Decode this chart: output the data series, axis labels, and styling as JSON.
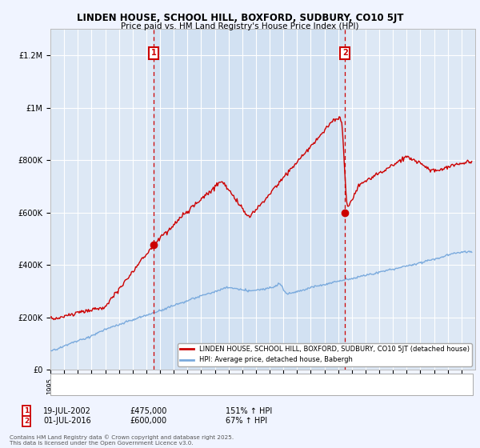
{
  "title": "LINDEN HOUSE, SCHOOL HILL, BOXFORD, SUDBURY, CO10 5JT",
  "subtitle": "Price paid vs. HM Land Registry's House Price Index (HPI)",
  "house_color": "#cc0000",
  "hpi_color": "#7aaadd",
  "dashed_line_color": "#cc0000",
  "background_color": "#f0f4ff",
  "plot_bg_color": "#dde8f5",
  "shaded_bg_color": "#ccddf0",
  "ylim": [
    0,
    1300000
  ],
  "yticks": [
    0,
    200000,
    400000,
    600000,
    800000,
    1000000,
    1200000
  ],
  "ytick_labels": [
    "£0",
    "£200K",
    "£400K",
    "£600K",
    "£800K",
    "£1M",
    "£1.2M"
  ],
  "purchase1_x": 2002.54,
  "purchase1_y": 475000,
  "purchase1_label": "1",
  "purchase2_x": 2016.5,
  "purchase2_y": 600000,
  "purchase2_label": "2",
  "legend_entries": [
    "LINDEN HOUSE, SCHOOL HILL, BOXFORD, SUDBURY, CO10 5JT (detached house)",
    "HPI: Average price, detached house, Babergh"
  ],
  "annotation1_date": "19-JUL-2002",
  "annotation1_price": "£475,000",
  "annotation1_hpi": "151% ↑ HPI",
  "annotation2_date": "01-JUL-2016",
  "annotation2_price": "£600,000",
  "annotation2_hpi": "67% ↑ HPI",
  "footer": "Contains HM Land Registry data © Crown copyright and database right 2025.\nThis data is licensed under the Open Government Licence v3.0.",
  "xmin": 1995,
  "xmax": 2026
}
